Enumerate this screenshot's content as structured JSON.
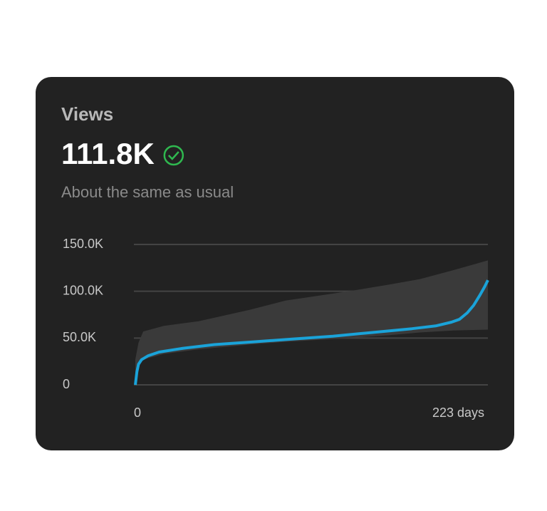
{
  "header": {
    "title": "Views",
    "value": "111.8K",
    "subtitle": "About the same as usual"
  },
  "chart_data": {
    "type": "line",
    "x": [
      0,
      1,
      2,
      4,
      8,
      15,
      30,
      50,
      75,
      100,
      125,
      150,
      175,
      190,
      200,
      205,
      210,
      214,
      218,
      221,
      223
    ],
    "series": [
      {
        "color": "#1aa3d9",
        "values": [
          0,
          14,
          22,
          27,
          31,
          35,
          39,
          43,
          46,
          49,
          52,
          56,
          60,
          63,
          67,
          70,
          77,
          85,
          96,
          105,
          111.8
        ]
      }
    ],
    "band": {
      "color": "#3a3a3a",
      "x": [
        0,
        2,
        5,
        18,
        40,
        72,
        95,
        135,
        160,
        180,
        200,
        223
      ],
      "lower": [
        8,
        20,
        27,
        33,
        38,
        43,
        46,
        50,
        53,
        56,
        58,
        59
      ],
      "upper": [
        27,
        45,
        57,
        63,
        68,
        80,
        90,
        100,
        107,
        113,
        122,
        133
      ]
    },
    "xlim": [
      0,
      223
    ],
    "xticks": [
      0,
      {
        "value": 223,
        "label": "223 days"
      }
    ],
    "ylim": [
      0,
      150
    ],
    "yticks": [
      0,
      {
        "value": 50,
        "label": "50.0K"
      },
      {
        "value": 100,
        "label": "100.0K"
      },
      {
        "value": 150,
        "label": "150.0K"
      }
    ],
    "grid": true
  }
}
